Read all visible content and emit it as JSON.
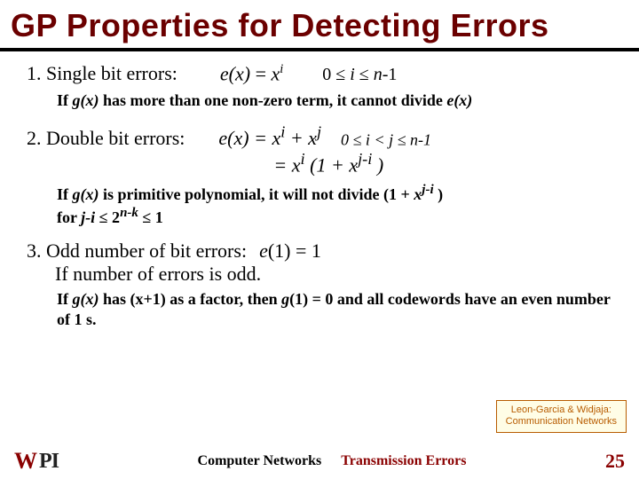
{
  "title": "GP Properties for Detecting Errors",
  "colors": {
    "title": "#6b0000",
    "underline": "#000000",
    "accent": "#8a0000",
    "attrib_border": "#b85c00",
    "attrib_bg": "#fffde6"
  },
  "items": {
    "one": {
      "label": "1.  Single bit errors:",
      "formula_html": "e(x) <span class='eq'>=</span> x<sup>i</sup>",
      "cond_html": "0 ≤ <i>i</i> ≤ <i>n</i>-1",
      "note_html": "If <span class='it'>g(x)</span> has more than one non-zero term,  it cannot divide <span class='it'>e(x)</span>"
    },
    "two": {
      "label": "2.  Double bit errors:",
      "formula_line1_html": "e(x) <span class='eq'>=</span>  x<sup>i</sup> <span class='eq'>+</span>  x<sup>j</sup>",
      "cond_html": "0 ≤ <i>i</i> < <i>j</i> ≤ <i>n</i>-1",
      "formula_line2_html": "<span class='eq'>=</span>  x<sup>i</sup> <span class='eq'>(1 +</span>  x<sup>j-i</sup> <span class='eq'>)</span>",
      "note_html": "If <span class='it'>g(x)</span> is primitive polynomial, it will not divide (1 +  <span class='it'>x<sup>j-i</sup></span> )<br>for <span class='it'>j-i</span> ≤ 2<span class='it'><sup>n-k</sup></span> ≤ 1"
    },
    "three": {
      "label": "3.  Odd number of bit errors:",
      "formula_html": "e<span class='eq'>(1) = 1</span>",
      "extra": "If number of errors is odd.",
      "note_html": "If <span class='it'>g(x)</span> has (x+1) as a factor, then <span class='it'>g</span>(1) = 0 and all codewords have an even number of 1 s."
    }
  },
  "attribution": {
    "line1": "Leon-Garcia & Widjaja:",
    "line2": "Communication Networks"
  },
  "footer": {
    "logo_w": "W",
    "logo_pi": "PI",
    "center1": "Computer Networks",
    "center2": "Transmission Errors",
    "page": "25"
  }
}
